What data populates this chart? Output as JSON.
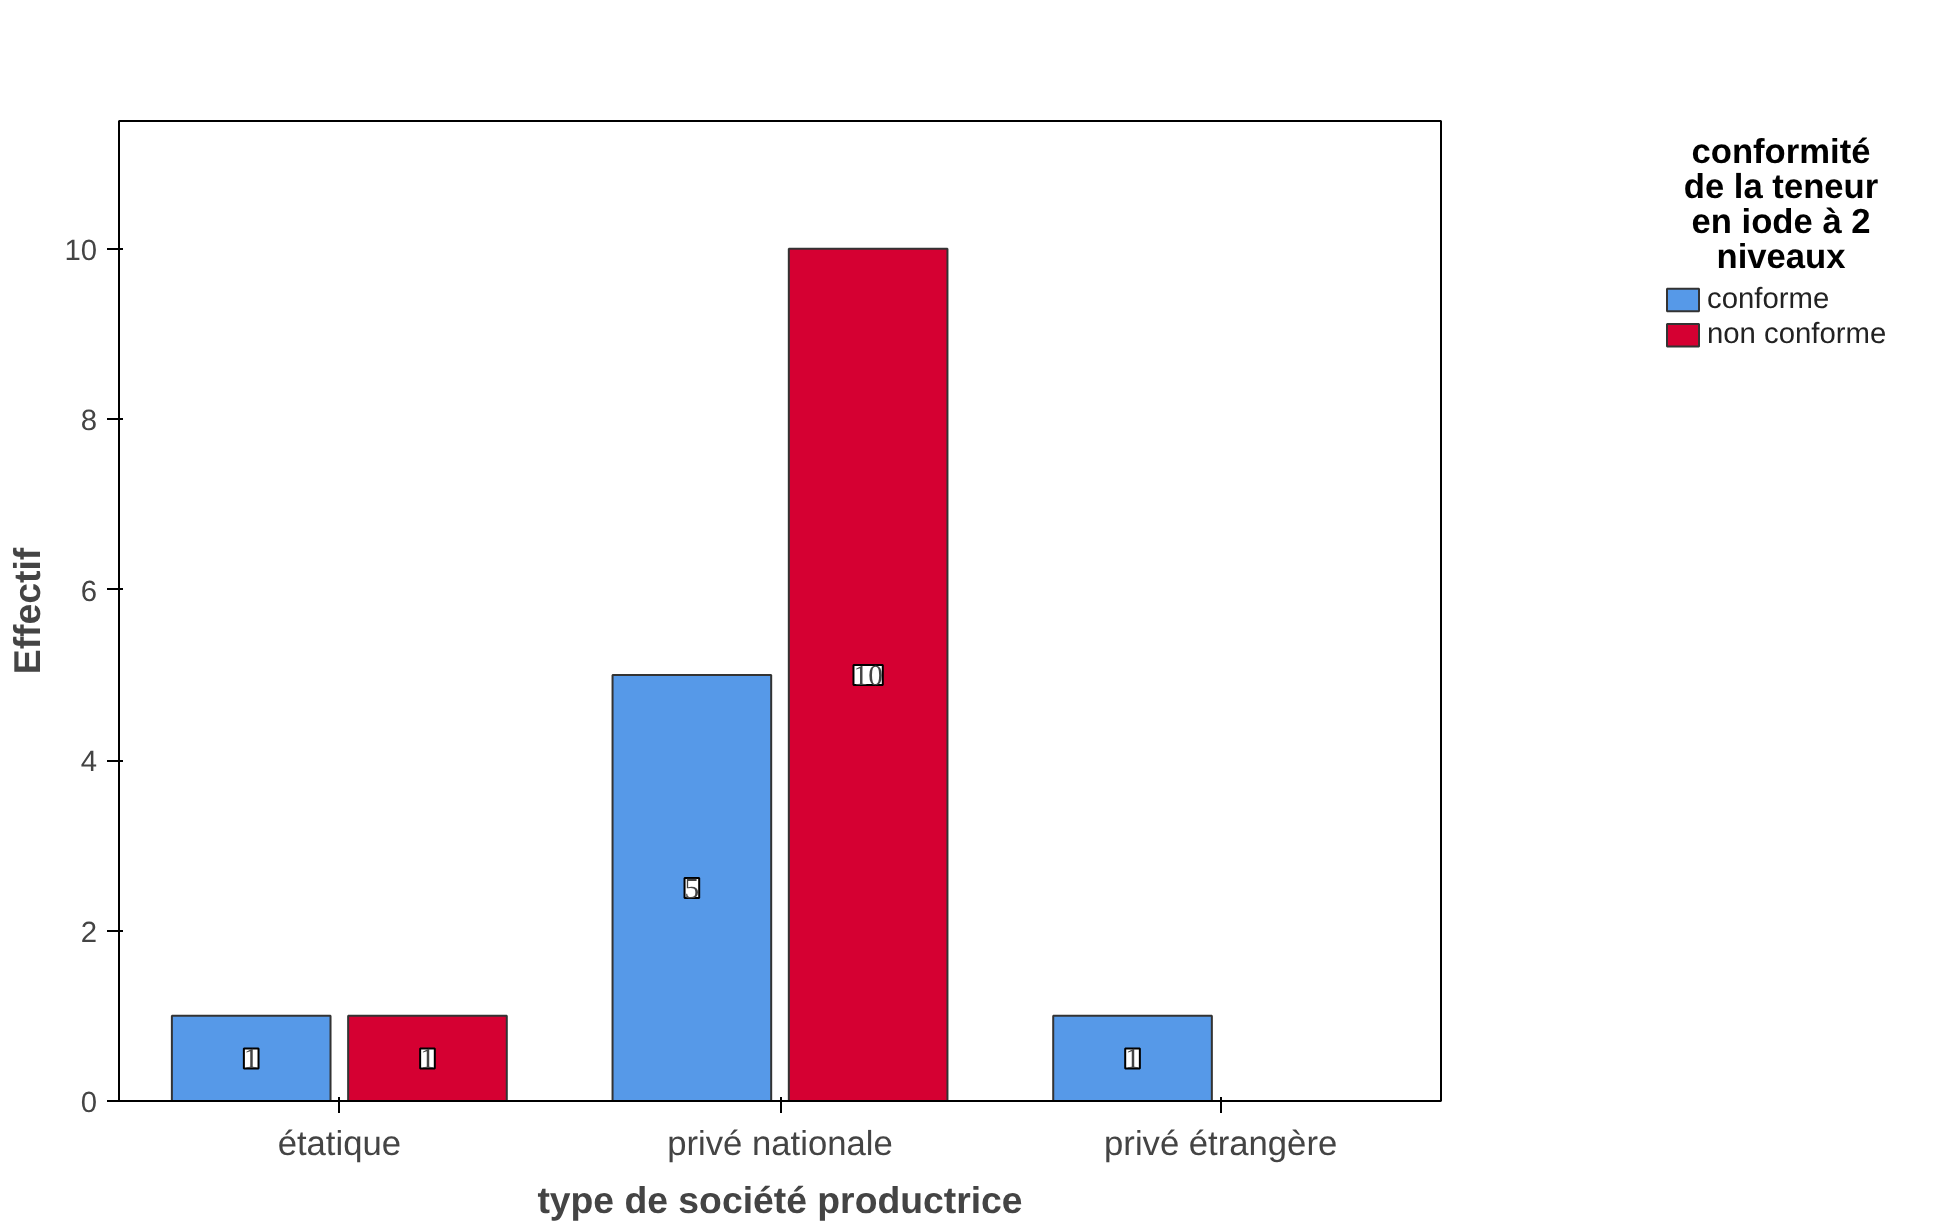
{
  "chart_data": {
    "type": "bar",
    "categories": [
      "étatique",
      "privé nationale",
      "privé étrangère"
    ],
    "series": [
      {
        "name": "conforme",
        "color": "#5699e8",
        "values": [
          1,
          5,
          1
        ]
      },
      {
        "name": "non conforme",
        "color": "#d50032",
        "values": [
          1,
          10,
          null
        ]
      }
    ],
    "xlabel": "type de société productrice",
    "ylabel": "Effectif",
    "legend_title": "conformité de la teneur en iode à 2 niveaux",
    "ylim": [
      0,
      11.5
    ],
    "yticks": [
      0,
      2,
      4,
      6,
      8,
      10
    ],
    "grid": false,
    "legend": "right",
    "data_labels": true
  }
}
